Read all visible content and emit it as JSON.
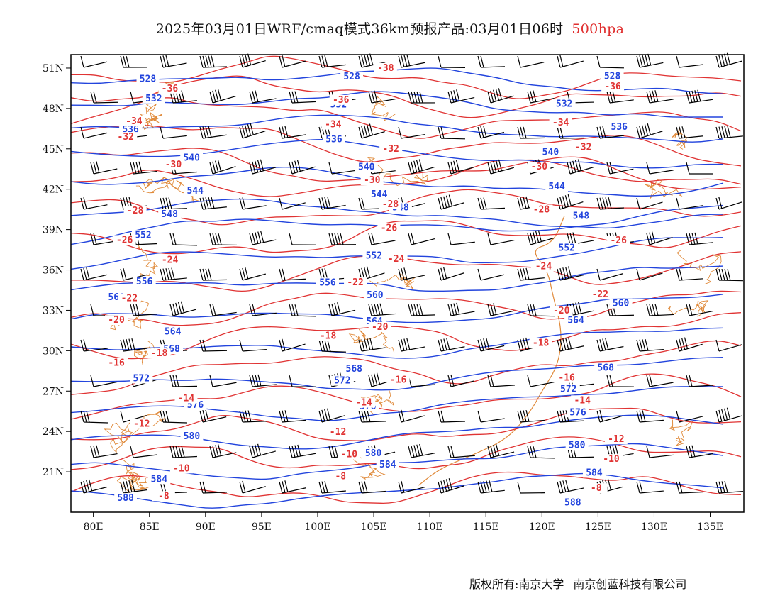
{
  "title": {
    "main": "2025年03月01日WRF/cmaq模式36km预报产品:03月01日06时",
    "level": "500hpa"
  },
  "axes": {
    "x_ticks": [
      "80E",
      "85E",
      "90E",
      "95E",
      "100E",
      "105E",
      "110E",
      "115E",
      "120E",
      "125E",
      "130E",
      "135E"
    ],
    "y_ticks": [
      "51N",
      "48N",
      "45N",
      "42N",
      "39N",
      "36N",
      "33N",
      "30N",
      "27N",
      "24N",
      "21N"
    ],
    "lon_range": [
      78,
      138
    ],
    "lat_range": [
      18,
      52
    ]
  },
  "colors": {
    "height_contour": "#2244dd",
    "temperature_contour": "#e03333",
    "coastline_border": "#e08a3a",
    "wind_barb": "#000000"
  },
  "contours": {
    "height_labels": [
      "548",
      "552",
      "556",
      "560",
      "564",
      "568",
      "572",
      "576",
      "580",
      "584",
      "588",
      "528",
      "532",
      "536",
      "540",
      "544"
    ],
    "temperature_labels": [
      "-38",
      "-36",
      "-34",
      "-32",
      "-30",
      "-28",
      "-26",
      "-24",
      "-22",
      "-20",
      "-18",
      "-16",
      "-14",
      "-12",
      "-10",
      "-8"
    ]
  },
  "footer": {
    "copyright": "版权所有:南京大学",
    "company": "南京创蓝科技有限公司"
  }
}
